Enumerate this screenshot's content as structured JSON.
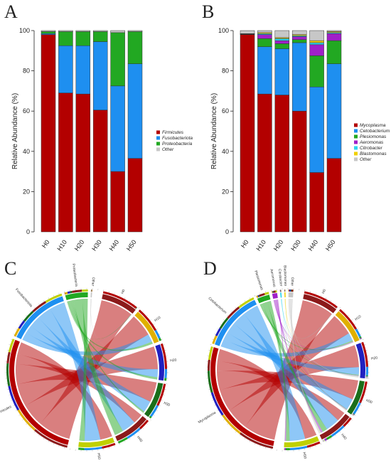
{
  "panels": {
    "a": "A",
    "b": "B",
    "c": "C",
    "d": "D"
  },
  "palette": {
    "Firmicutes": "#b30000",
    "Fusobacteriota": "#1e8ff0",
    "Proteobacteria": "#22a822",
    "Other": "#c7c7c7",
    "Mycoplasma": "#b30000",
    "Cetobacterium": "#1e8ff0",
    "Plesiomonas": "#22a822",
    "Aeromonas": "#a020c8",
    "Citrobacter": "#2fd5ef",
    "Blastomonas": "#f0d000",
    "H0": "#8b1a1a",
    "H10": "#e0b000",
    "H20": "#2020c0",
    "H30": "#1a6e1a",
    "H40": "#8b1a1a",
    "H50": "#c0d000"
  },
  "chart_data": [
    {
      "type": "bar",
      "stacked": true,
      "panel": "A",
      "categories": [
        "H0",
        "H10",
        "H20",
        "H30",
        "H40",
        "H50"
      ],
      "ylabel": "Relative Abundance (%)",
      "ylim": [
        0,
        100
      ],
      "yticks": [
        0,
        20,
        40,
        60,
        80,
        100
      ],
      "legend_position": "right",
      "series": [
        {
          "name": "Firmicutes",
          "values": [
            98.0,
            69.0,
            68.5,
            60.5,
            30.0,
            36.5
          ]
        },
        {
          "name": "Fusobacteriota",
          "values": [
            0.5,
            23.5,
            24.0,
            34.0,
            42.5,
            47.0
          ]
        },
        {
          "name": "Proteobacteria",
          "values": [
            1.0,
            7.0,
            7.0,
            5.0,
            26.5,
            16.0
          ]
        },
        {
          "name": "Other",
          "values": [
            0.5,
            0.5,
            0.5,
            0.5,
            1.0,
            0.5
          ]
        }
      ]
    },
    {
      "type": "bar",
      "stacked": true,
      "panel": "B",
      "categories": [
        "H0",
        "H10",
        "H20",
        "H30",
        "H40",
        "H50"
      ],
      "ylabel": "Relative Abundance (%)",
      "ylim": [
        0,
        100
      ],
      "yticks": [
        0,
        20,
        40,
        60,
        80,
        100
      ],
      "legend_position": "right",
      "series": [
        {
          "name": "Mycoplasma",
          "values": [
            98.0,
            68.5,
            68.0,
            60.0,
            29.5,
            36.5
          ]
        },
        {
          "name": "Cetobacterium",
          "values": [
            0.0,
            23.5,
            23.0,
            34.0,
            42.5,
            47.0
          ]
        },
        {
          "name": "Plesiomonas",
          "values": [
            0.2,
            4.0,
            2.5,
            1.5,
            15.5,
            11.5
          ]
        },
        {
          "name": "Aeromonas",
          "values": [
            0.1,
            2.0,
            1.5,
            1.5,
            5.5,
            3.5
          ]
        },
        {
          "name": "Citrobacter",
          "values": [
            0.1,
            0.5,
            1.0,
            0.5,
            1.0,
            0.5
          ]
        },
        {
          "name": "Blastomonas",
          "values": [
            0.1,
            0.5,
            0.5,
            0.5,
            1.0,
            0.5
          ]
        },
        {
          "name": "Other",
          "values": [
            1.5,
            1.0,
            3.5,
            2.0,
            5.0,
            0.5
          ]
        }
      ]
    }
  ],
  "chords": [
    {
      "panel": "C",
      "taxa": [
        "Firmicutes",
        "Fusobacteriota",
        "Proteobacteria",
        "Other"
      ],
      "samples": [
        "H0",
        "H10",
        "H20",
        "H30",
        "H40",
        "H50"
      ]
    },
    {
      "panel": "D",
      "taxa": [
        "Mycoplasma",
        "Cetobacterium",
        "Plesiomonas",
        "Aeromonas",
        "Citrobacter",
        "Blastomonas",
        "Other"
      ],
      "samples": [
        "H0",
        "H10",
        "H20",
        "H30",
        "H40",
        "H50"
      ]
    }
  ]
}
